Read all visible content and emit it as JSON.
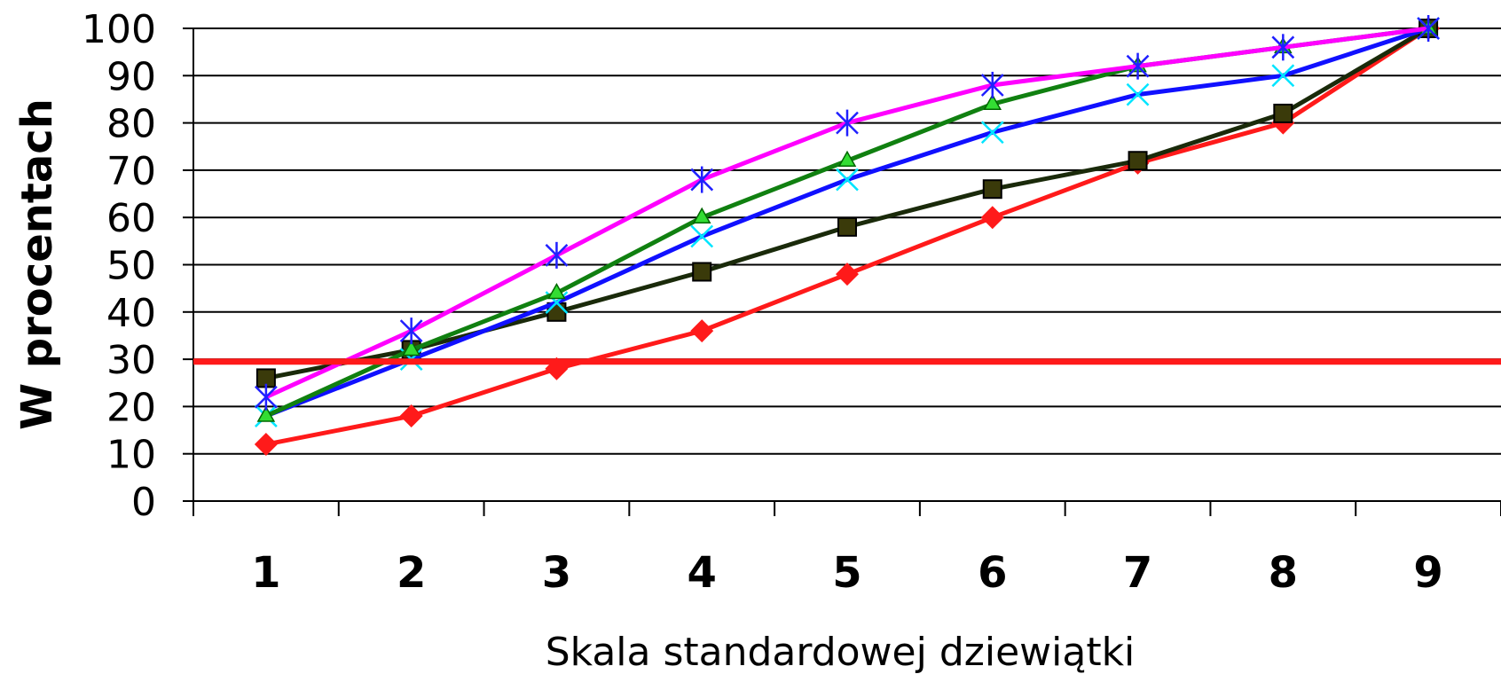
{
  "chart_data": {
    "type": "line",
    "title": "",
    "xlabel": "Skala standardowej dziewiątki",
    "ylabel": "W procentach",
    "categories": [
      "1",
      "2",
      "3",
      "4",
      "5",
      "6",
      "7",
      "8",
      "9"
    ],
    "yticks": [
      "0",
      "10",
      "20",
      "30",
      "40",
      "50",
      "60",
      "70",
      "80",
      "90",
      "100"
    ],
    "ylim": [
      0,
      100
    ],
    "grid": true,
    "legend": "none",
    "reference_line": {
      "y": 29.5,
      "color": "#ff1a1a"
    },
    "series": [
      {
        "color": "#ff1a1a",
        "marker": "diamond",
        "values": [
          12,
          18,
          28,
          36,
          48,
          60,
          71.5,
          80,
          100
        ]
      },
      {
        "color": "#1a2a0a",
        "marker": "square",
        "values": [
          26,
          32,
          40,
          48.5,
          58,
          66,
          72,
          82,
          100
        ]
      },
      {
        "color": "#1010ff",
        "marker": "x-cyan",
        "values": [
          18,
          30,
          42,
          56,
          68,
          78,
          86,
          90,
          100
        ]
      },
      {
        "color": "#108010",
        "marker": "triangle",
        "values": [
          18,
          32,
          44,
          60,
          72,
          84,
          92,
          96,
          100
        ]
      },
      {
        "color": "#ff00ff",
        "marker": "asterisk",
        "values": [
          22,
          36,
          52,
          68,
          80,
          88,
          92,
          96,
          100
        ]
      }
    ]
  }
}
